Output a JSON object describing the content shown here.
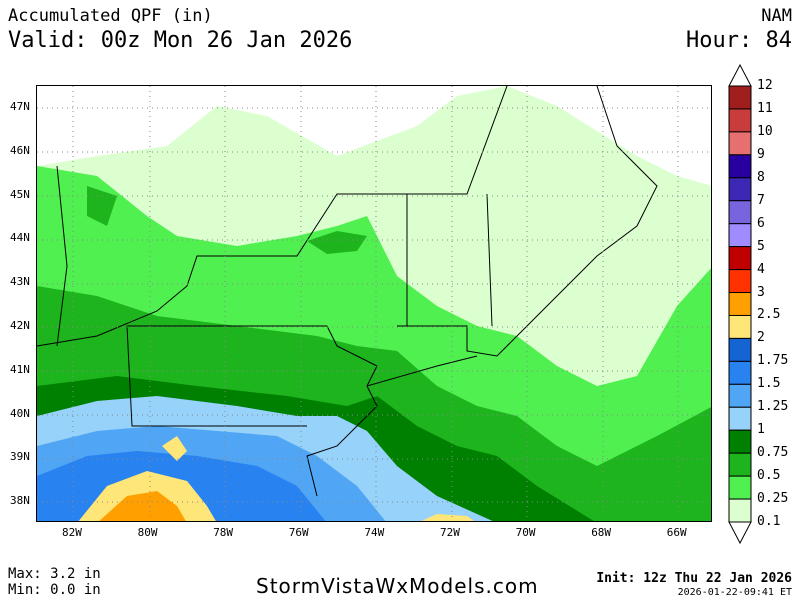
{
  "header": {
    "title": "Accumulated QPF (in)",
    "valid": "Valid: 00z Mon 26 Jan 2026",
    "model": "NAM",
    "hour": "Hour: 84"
  },
  "map": {
    "lat_labels": [
      "47N",
      "46N",
      "45N",
      "44N",
      "43N",
      "42N",
      "41N",
      "40N",
      "39N",
      "38N"
    ],
    "lon_labels": [
      "82W",
      "80W",
      "78W",
      "76W",
      "74W",
      "72W",
      "70W",
      "68W",
      "66W"
    ]
  },
  "colorbar": {
    "labels": [
      "12",
      "11",
      "10",
      "9",
      "8",
      "7",
      "6",
      "5",
      "4",
      "3",
      "2.5",
      "2",
      "1.75",
      "1.5",
      "1.25",
      "1",
      "0.75",
      "0.5",
      "0.25",
      "0.1"
    ],
    "colors": [
      "#a01e1e",
      "#c83c3c",
      "#e67070",
      "#2800a0",
      "#3c28b4",
      "#7864dc",
      "#a08cff",
      "#c00000",
      "#ff3200",
      "#ffa000",
      "#ffe678",
      "#1464d2",
      "#2882f0",
      "#50a5f5",
      "#96d2fa",
      "#008000",
      "#1eb41e",
      "#50f050",
      "#dcffd0"
    ]
  },
  "footer": {
    "max": "Max: 3.2 in",
    "min": "Min: 0.0 in",
    "brand": "StormVistaWxModels.com",
    "init": "Init: 12z Thu 22 Jan 2026",
    "stamp": "2026-01-22-09:41 ET"
  }
}
